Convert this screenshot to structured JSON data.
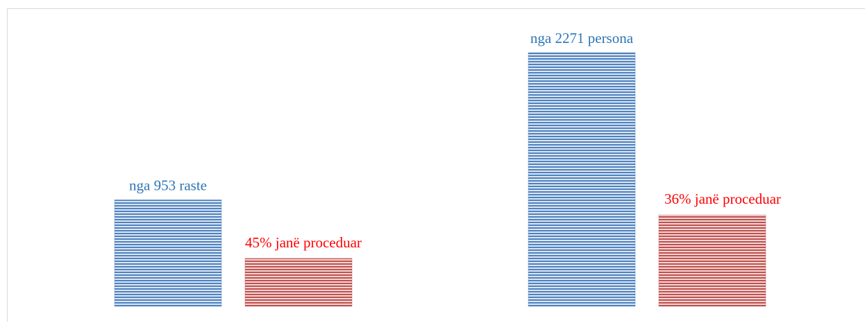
{
  "chart_data": {
    "type": "bar",
    "series": [
      {
        "color": "#4f81bd",
        "label_color": "#2e75b6",
        "values": [
          953,
          2271
        ],
        "value_labels": [
          "nga 953 raste",
          "nga 2271 persona"
        ]
      },
      {
        "color": "#c0504d",
        "label_color": "#ff0000",
        "values": [
          45,
          36
        ],
        "value_labels": [
          "45% janë proceduar",
          "36% janë proceduar"
        ]
      }
    ]
  }
}
